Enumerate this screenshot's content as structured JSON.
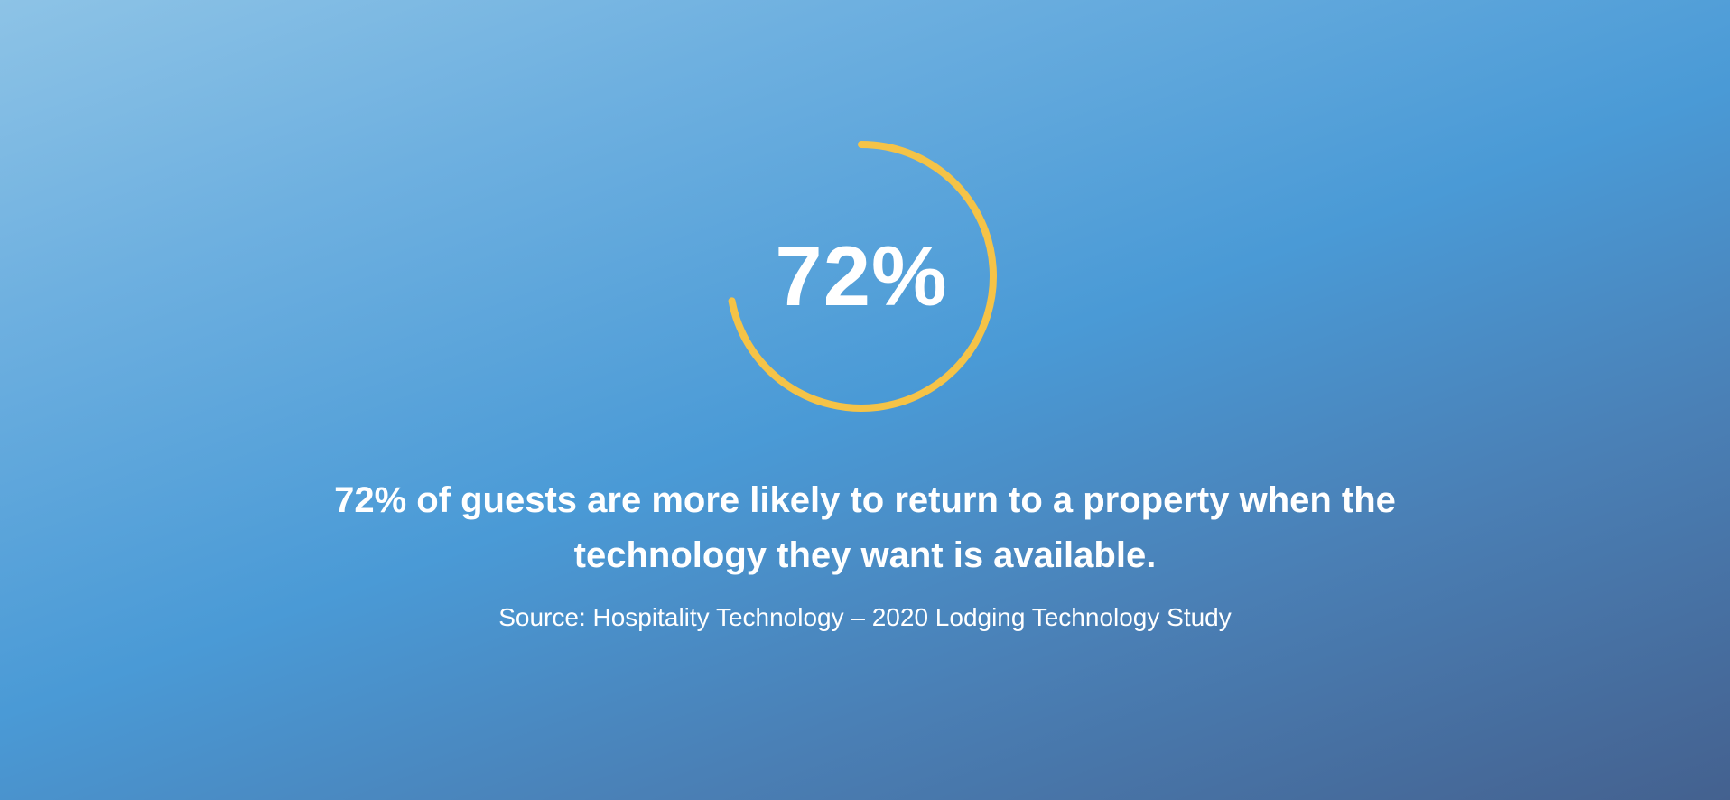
{
  "stat": {
    "value_text": "72%",
    "progress_percent": 72,
    "ring_color": "#f5c347"
  },
  "headline": {
    "text": "72% of guests are more likely to return to a property when the technology they want is available."
  },
  "source": {
    "text": "Source: Hospitality Technology – 2020 Lodging Technology Study"
  },
  "colors": {
    "text": "#ffffff",
    "background_top": "#8dc3e6",
    "background_mid": "#4a9ad6",
    "background_bottom": "#44618f"
  }
}
